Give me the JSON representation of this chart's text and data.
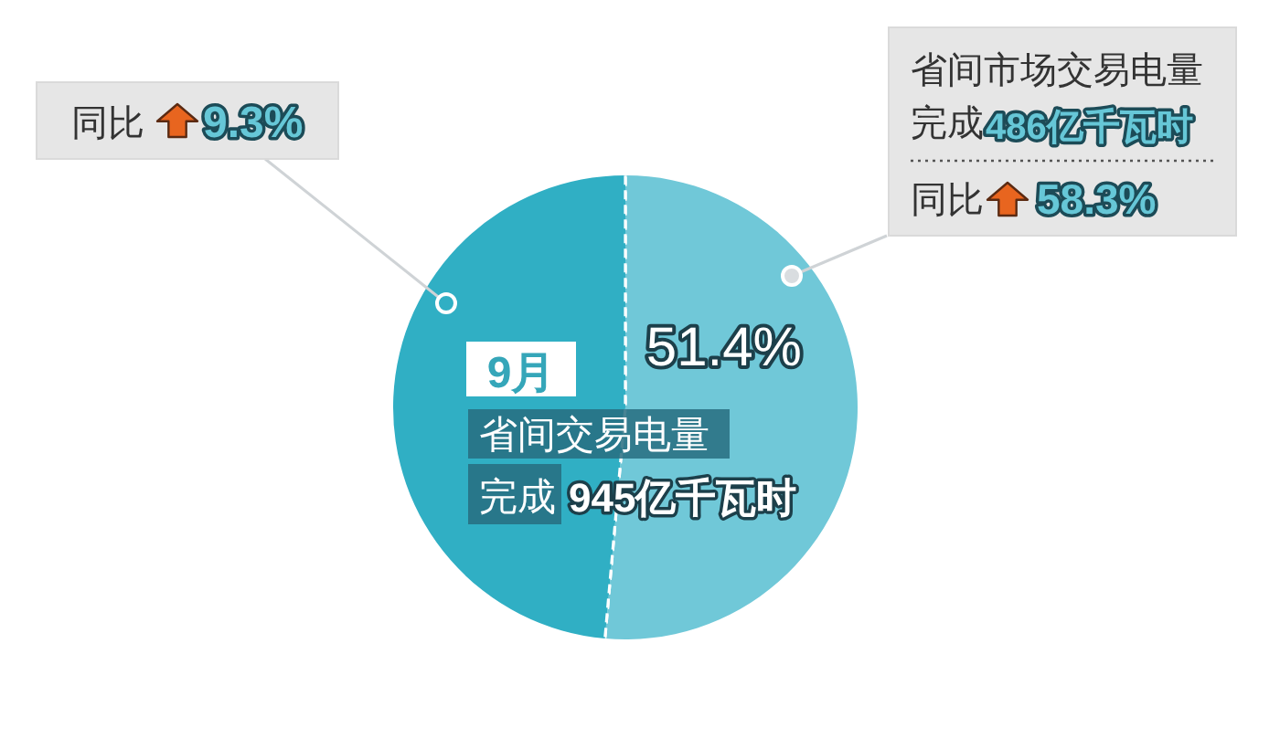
{
  "chart_data": {
    "type": "pie",
    "categories": [
      null,
      null
    ],
    "values": [
      51.4,
      48.6
    ],
    "colors": [
      "#70c8d8",
      "#30afc4"
    ],
    "value_labels": [
      "51.4%",
      null
    ],
    "annotations": [
      "同比",
      "9.3%",
      "省间市场交易电量",
      "完成",
      "486亿千瓦时",
      "同比",
      "58.3%",
      "9月",
      "省间交易电量",
      "完成",
      "945亿千瓦时"
    ]
  }
}
